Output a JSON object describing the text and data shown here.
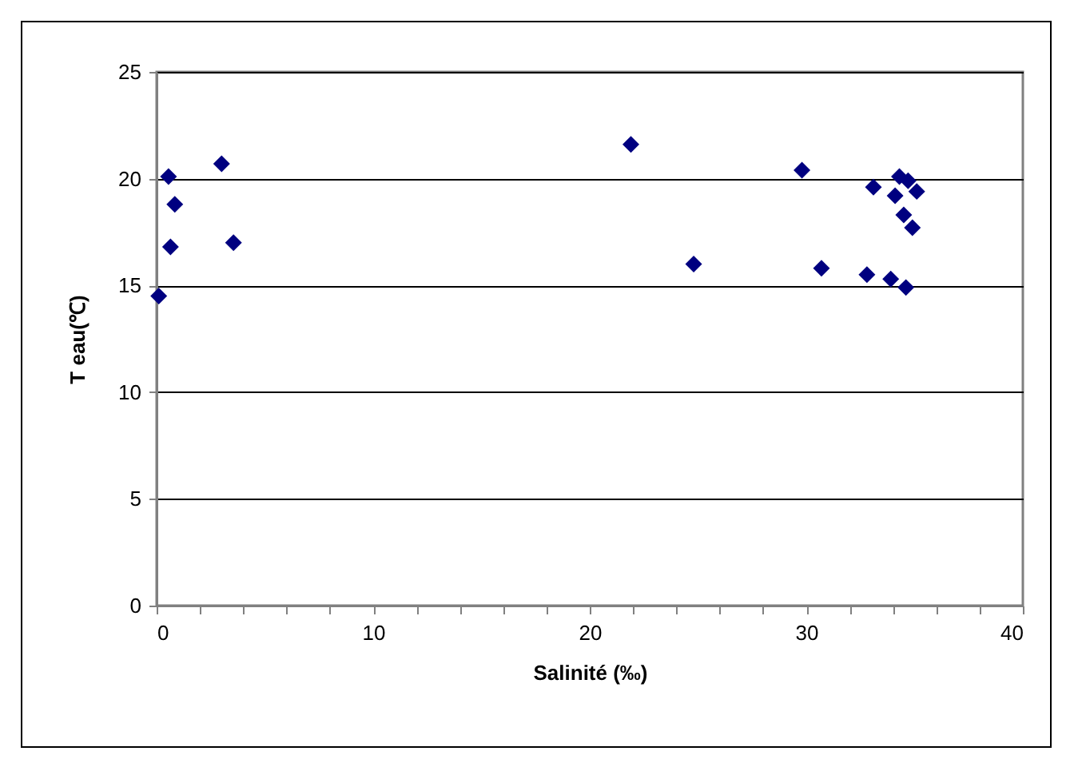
{
  "chart_data": {
    "type": "scatter",
    "xlabel": "Salinité (‰)",
    "ylabel": "T eau(℃)",
    "series": [
      {
        "color": "#000080",
        "x": [
          0.1,
          0.55,
          0.84,
          0.64,
          3.0,
          3.55,
          21.9,
          24.8,
          29.8,
          30.7,
          32.8,
          33.1,
          33.9,
          34.6,
          34.3,
          34.1,
          34.7,
          35.1,
          34.5,
          34.9
        ],
        "values": [
          14.5,
          20.1,
          18.8,
          16.8,
          20.7,
          17.0,
          21.6,
          16.0,
          20.4,
          15.8,
          15.5,
          19.6,
          15.3,
          14.9,
          20.1,
          19.2,
          19.9,
          19.4,
          18.3,
          17.7
        ]
      }
    ],
    "xlim": [
      0,
      40
    ],
    "ylim": [
      0,
      25
    ],
    "xticks": [
      0,
      {
        "value": 2,
        "label": null
      },
      {
        "value": 4,
        "label": null
      },
      {
        "value": 6,
        "label": null
      },
      {
        "value": 8,
        "label": null
      },
      10,
      {
        "value": 12,
        "label": null
      },
      {
        "value": 14,
        "label": null
      },
      {
        "value": 16,
        "label": null
      },
      {
        "value": 18,
        "label": null
      },
      20,
      {
        "value": 22,
        "label": null
      },
      {
        "value": 24,
        "label": null
      },
      {
        "value": 26,
        "label": null
      },
      {
        "value": 28,
        "label": null
      },
      30,
      {
        "value": 32,
        "label": null
      },
      {
        "value": 34,
        "label": null
      },
      {
        "value": 36,
        "label": null
      },
      {
        "value": 38,
        "label": null
      },
      40
    ],
    "yticks": [
      0,
      5,
      10,
      15,
      20,
      25
    ],
    "grid": "y",
    "marker": "diamond",
    "legend": false
  }
}
